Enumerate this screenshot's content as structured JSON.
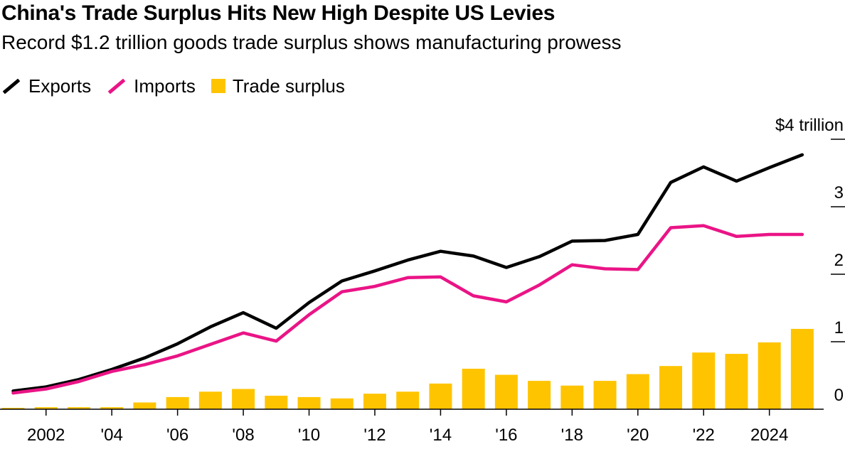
{
  "title": "China's Trade Surplus Hits New High Despite US Levies",
  "subtitle": "Record $1.2 trillion goods trade surplus shows manufacturing prowess",
  "legend": [
    {
      "label": "Exports",
      "color": "#000000",
      "kind": "line"
    },
    {
      "label": "Imports",
      "color": "#ea1486",
      "kind": "line"
    },
    {
      "label": "Trade surplus",
      "color": "#ffc400",
      "kind": "bar"
    }
  ],
  "chart_data": {
    "type": "bar",
    "x": [
      2001,
      2002,
      2003,
      2004,
      2005,
      2006,
      2007,
      2008,
      2009,
      2010,
      2011,
      2012,
      2013,
      2014,
      2015,
      2016,
      2017,
      2018,
      2019,
      2020,
      2021,
      2022,
      2023,
      2024,
      2025
    ],
    "series": [
      {
        "name": "Exports",
        "type": "line",
        "color": "#000000",
        "values": [
          0.27,
          0.33,
          0.44,
          0.59,
          0.76,
          0.97,
          1.22,
          1.43,
          1.2,
          1.58,
          1.9,
          2.05,
          2.21,
          2.34,
          2.27,
          2.1,
          2.26,
          2.49,
          2.5,
          2.59,
          3.36,
          3.59,
          3.38,
          3.58,
          3.77
        ]
      },
      {
        "name": "Imports",
        "type": "line",
        "color": "#ea1486",
        "values": [
          0.24,
          0.3,
          0.41,
          0.56,
          0.66,
          0.79,
          0.96,
          1.13,
          1.01,
          1.4,
          1.74,
          1.82,
          1.95,
          1.96,
          1.68,
          1.59,
          1.84,
          2.14,
          2.08,
          2.07,
          2.69,
          2.72,
          2.56,
          2.59,
          2.59
        ]
      },
      {
        "name": "Trade surplus",
        "type": "bar",
        "color": "#ffc400",
        "values": [
          0.02,
          0.03,
          0.03,
          0.03,
          0.1,
          0.18,
          0.26,
          0.3,
          0.2,
          0.18,
          0.16,
          0.23,
          0.26,
          0.38,
          0.6,
          0.51,
          0.42,
          0.35,
          0.42,
          0.52,
          0.64,
          0.84,
          0.82,
          0.99,
          1.19
        ]
      }
    ],
    "xticks": [
      {
        "value": 2002,
        "label": "2002"
      },
      {
        "value": 2004,
        "label": "'04"
      },
      {
        "value": 2006,
        "label": "'06"
      },
      {
        "value": 2008,
        "label": "'08"
      },
      {
        "value": 2010,
        "label": "'10"
      },
      {
        "value": 2012,
        "label": "'12"
      },
      {
        "value": 2014,
        "label": "'14"
      },
      {
        "value": 2016,
        "label": "'16"
      },
      {
        "value": 2018,
        "label": "'18"
      },
      {
        "value": 2020,
        "label": "'20"
      },
      {
        "value": 2022,
        "label": "'22"
      },
      {
        "value": 2024,
        "label": "2024"
      }
    ],
    "yticks": [
      {
        "value": 0,
        "label": "0"
      },
      {
        "value": 1,
        "label": "1"
      },
      {
        "value": 2,
        "label": "2"
      },
      {
        "value": 3,
        "label": "3"
      },
      {
        "value": 4,
        "label": "$4 trillion"
      }
    ],
    "ylim": [
      0,
      4
    ],
    "xlim": [
      2000.6,
      2026.3
    ],
    "grid": false,
    "legend_position": "top-left",
    "xlabel": "",
    "ylabel": ""
  }
}
